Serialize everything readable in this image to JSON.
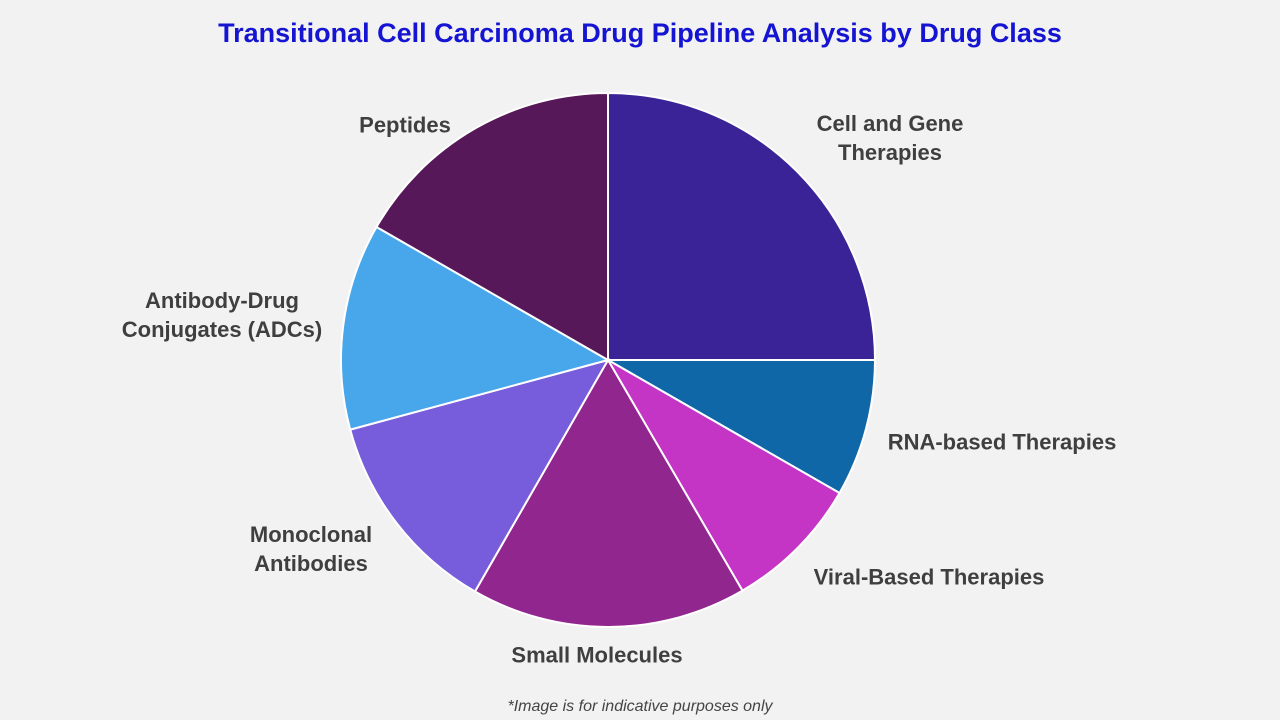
{
  "chart_data": {
    "type": "pie",
    "title": "Transitional Cell Carcinoma Drug Pipeline Analysis by Drug Class",
    "categories": [
      "Cell and Gene Therapies",
      "RNA-based Therapies",
      "Viral-Based Therapies",
      "Small Molecules",
      "Monoclonal Antibodies",
      "Antibody-Drug Conjugates (ADCs)",
      "Peptides"
    ],
    "values": [
      25,
      8.3,
      8.3,
      16.7,
      12.5,
      12.5,
      16.7
    ],
    "colors": [
      "#3a2397",
      "#0f67a7",
      "#c535c5",
      "#92268f",
      "#775ddb",
      "#47a7ea",
      "#561858"
    ],
    "start_angle": "12 o'clock",
    "direction": "clockwise",
    "legend": "none"
  },
  "footnote": "*Image is for indicative purposes only"
}
